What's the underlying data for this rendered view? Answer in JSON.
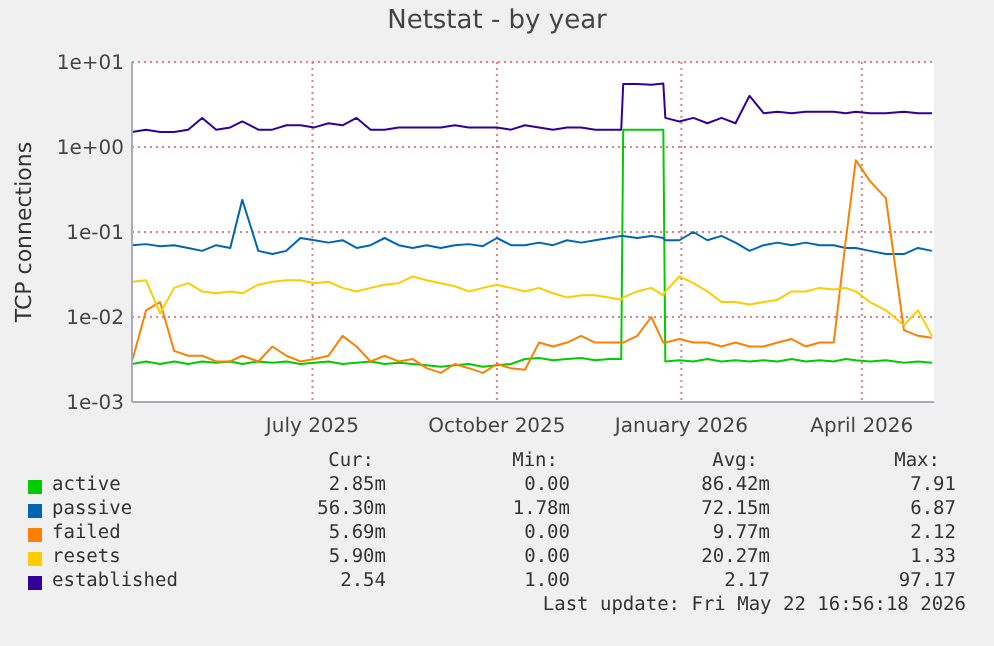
{
  "chart_data": {
    "type": "line",
    "title": "Netstat - by year",
    "ylabel": "TCP connections",
    "log": "y",
    "grid": true,
    "legend": "bottom",
    "marker": "none",
    "line_style": "solid",
    "xlim": [
      "2025-04-17",
      "2026-05-22"
    ],
    "xticks": [
      {
        "value": "2025-07-16",
        "label": "July 2025"
      },
      {
        "value": "2025-10-16",
        "label": "October 2025"
      },
      {
        "value": "2026-01-16",
        "label": "January 2026"
      },
      {
        "value": "2026-04-16",
        "label": "April 2026"
      }
    ],
    "ylim": [
      0.001,
      10
    ],
    "yticks": [
      {
        "value": 0.001,
        "label": "1e-03"
      },
      {
        "value": 0.01,
        "label": "1e-02"
      },
      {
        "value": 0.1,
        "label": "1e-01"
      },
      {
        "value": 1,
        "label": "1e+00"
      },
      {
        "value": 10,
        "label": "1e+01"
      }
    ],
    "x": [
      "2025-04-17",
      "2025-04-24",
      "2025-05-01",
      "2025-05-08",
      "2025-05-15",
      "2025-05-22",
      "2025-05-29",
      "2025-06-05",
      "2025-06-11",
      "2025-06-19",
      "2025-06-26",
      "2025-07-03",
      "2025-07-10",
      "2025-07-17",
      "2025-07-24",
      "2025-07-31",
      "2025-08-07",
      "2025-08-14",
      "2025-08-21",
      "2025-08-28",
      "2025-09-04",
      "2025-09-11",
      "2025-09-18",
      "2025-09-25",
      "2025-10-02",
      "2025-10-09",
      "2025-10-16",
      "2025-10-23",
      "2025-10-30",
      "2025-11-06",
      "2025-11-13",
      "2025-11-20",
      "2025-11-27",
      "2025-12-04",
      "2025-12-11",
      "2025-12-17",
      "2025-12-18",
      "2025-12-25",
      "2026-01-01",
      "2026-01-07",
      "2026-01-08",
      "2026-01-15",
      "2026-01-22",
      "2026-01-29",
      "2026-02-05",
      "2026-02-12",
      "2026-02-19",
      "2026-02-26",
      "2026-03-05",
      "2026-03-12",
      "2026-03-19",
      "2026-03-26",
      "2026-04-02",
      "2026-04-08",
      "2026-04-13",
      "2026-04-20",
      "2026-04-28",
      "2026-05-07",
      "2026-05-14",
      "2026-05-21"
    ],
    "series": [
      {
        "name": "active",
        "color": "#00cc00",
        "values": [
          0.0028,
          0.003,
          0.0028,
          0.003,
          0.0028,
          0.003,
          0.0029,
          0.003,
          0.0028,
          0.003,
          0.0029,
          0.003,
          0.0028,
          0.0029,
          0.003,
          0.0028,
          0.0029,
          0.003,
          0.0028,
          0.0029,
          0.0028,
          0.0027,
          0.0026,
          0.0027,
          0.0028,
          0.0026,
          0.0027,
          0.0028,
          0.0032,
          0.0033,
          0.0031,
          0.0032,
          0.0033,
          0.0031,
          0.0032,
          0.0032,
          1.6,
          1.6,
          1.6,
          1.6,
          0.003,
          0.0031,
          0.003,
          0.0032,
          0.003,
          0.0031,
          0.003,
          0.0031,
          0.003,
          0.0032,
          0.003,
          0.0031,
          0.003,
          0.0032,
          0.0031,
          0.003,
          0.0031,
          0.0029,
          0.003,
          0.0029
        ]
      },
      {
        "name": "passive",
        "color": "#0066b3",
        "values": [
          0.07,
          0.072,
          0.068,
          0.07,
          0.065,
          0.06,
          0.07,
          0.065,
          0.24,
          0.06,
          0.055,
          0.06,
          0.085,
          0.08,
          0.075,
          0.08,
          0.065,
          0.07,
          0.085,
          0.07,
          0.065,
          0.07,
          0.065,
          0.07,
          0.072,
          0.068,
          0.085,
          0.07,
          0.07,
          0.075,
          0.07,
          0.08,
          0.075,
          0.08,
          0.085,
          0.09,
          0.09,
          0.085,
          0.09,
          0.085,
          0.08,
          0.08,
          0.1,
          0.08,
          0.09,
          0.075,
          0.06,
          0.07,
          0.075,
          0.07,
          0.075,
          0.07,
          0.07,
          0.065,
          0.065,
          0.06,
          0.055,
          0.055,
          0.065,
          0.06
        ]
      },
      {
        "name": "failed",
        "color": "#ff8000",
        "values": [
          0.003,
          0.012,
          0.015,
          0.004,
          0.0035,
          0.0035,
          0.003,
          0.003,
          0.0035,
          0.003,
          0.0045,
          0.0035,
          0.003,
          0.0032,
          0.0035,
          0.006,
          0.0045,
          0.003,
          0.0035,
          0.003,
          0.0032,
          0.0025,
          0.0022,
          0.0028,
          0.0025,
          0.0022,
          0.0028,
          0.0025,
          0.0024,
          0.005,
          0.0045,
          0.005,
          0.006,
          0.005,
          0.005,
          0.005,
          0.005,
          0.006,
          0.01,
          0.005,
          0.005,
          0.0055,
          0.005,
          0.005,
          0.0045,
          0.005,
          0.0045,
          0.0045,
          0.005,
          0.0055,
          0.0045,
          0.005,
          0.005,
          0.08,
          0.7,
          0.4,
          0.25,
          0.007,
          0.006,
          0.0057
        ]
      },
      {
        "name": "resets",
        "color": "#ffcc00",
        "values": [
          0.026,
          0.027,
          0.011,
          0.022,
          0.025,
          0.02,
          0.019,
          0.02,
          0.019,
          0.024,
          0.026,
          0.027,
          0.027,
          0.025,
          0.026,
          0.022,
          0.02,
          0.022,
          0.024,
          0.025,
          0.03,
          0.027,
          0.025,
          0.023,
          0.02,
          0.022,
          0.024,
          0.022,
          0.02,
          0.022,
          0.019,
          0.017,
          0.018,
          0.018,
          0.017,
          0.016,
          0.017,
          0.02,
          0.022,
          0.018,
          0.02,
          0.03,
          0.025,
          0.02,
          0.015,
          0.015,
          0.014,
          0.015,
          0.016,
          0.02,
          0.02,
          0.022,
          0.021,
          0.022,
          0.02,
          0.015,
          0.012,
          0.008,
          0.012,
          0.006
        ]
      },
      {
        "name": "established",
        "color": "#330099",
        "values": [
          1.5,
          1.6,
          1.5,
          1.5,
          1.6,
          2.2,
          1.6,
          1.7,
          2.0,
          1.6,
          1.6,
          1.8,
          1.8,
          1.7,
          1.9,
          1.8,
          2.2,
          1.6,
          1.6,
          1.7,
          1.7,
          1.7,
          1.7,
          1.8,
          1.7,
          1.7,
          1.7,
          1.6,
          1.8,
          1.7,
          1.6,
          1.7,
          1.7,
          1.6,
          1.6,
          1.6,
          5.5,
          5.5,
          5.4,
          5.6,
          2.2,
          2.0,
          2.2,
          1.9,
          2.2,
          1.9,
          4.0,
          2.5,
          2.6,
          2.5,
          2.6,
          2.6,
          2.6,
          2.5,
          2.6,
          2.5,
          2.5,
          2.6,
          2.5,
          2.5
        ]
      }
    ],
    "annotations": [
      "Cur:",
      "Min:",
      "Avg:",
      "Max:",
      "2.85m",
      "0.00",
      "86.42m",
      "7.91",
      "56.30m",
      "1.78m",
      "72.15m",
      "6.87",
      "5.69m",
      "0.00",
      "9.77m",
      "2.12",
      "5.90m",
      "0.00",
      "20.27m",
      "1.33",
      "2.54",
      "1.00",
      "2.17",
      "97.17",
      "Last update: Fri May 22 16:56:18 2026"
    ]
  }
}
